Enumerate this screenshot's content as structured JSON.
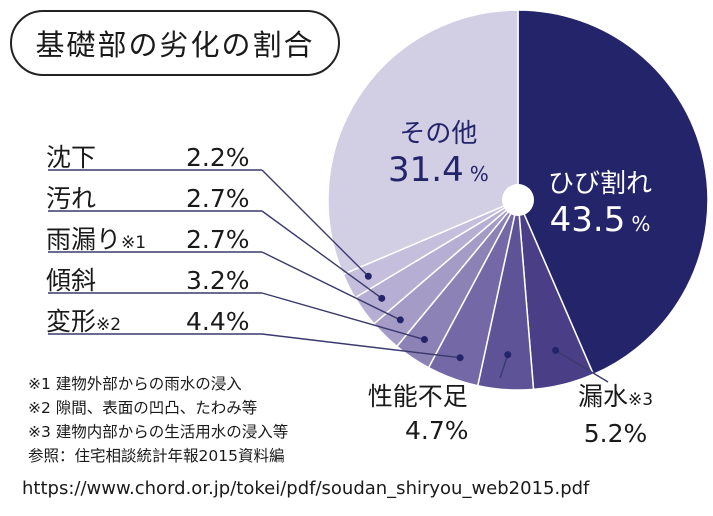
{
  "title": "基礎部の劣化の割合",
  "chart_data": {
    "type": "pie",
    "title": "基礎部の劣化の割合",
    "unit": "%",
    "slices": [
      {
        "label": "ひび割れ",
        "value": 43.5,
        "color": "#24246b"
      },
      {
        "label": "漏水",
        "note": "※3",
        "value": 5.2,
        "color": "#4a3f86"
      },
      {
        "label": "性能不足",
        "value": 4.7,
        "color": "#5d5396"
      },
      {
        "label": "変形",
        "note": "※2",
        "value": 4.4,
        "color": "#7568a6"
      },
      {
        "label": "傾斜",
        "value": 3.2,
        "color": "#8d82b6"
      },
      {
        "label": "雨漏り",
        "note": "※1",
        "value": 2.7,
        "color": "#a49bc6"
      },
      {
        "label": "汚れ",
        "value": 2.7,
        "color": "#b6aed3"
      },
      {
        "label": "沈下",
        "value": 2.2,
        "color": "#c5bedd"
      },
      {
        "label": "その他",
        "value": 31.4,
        "color": "#d2cee4"
      }
    ]
  },
  "labels": {
    "hibiware_name": "ひび割れ",
    "hibiware_value": "43.5",
    "hibiware_unit": "%",
    "sonota_name": "その他",
    "sonota_value": "31.4",
    "sonota_unit": "%",
    "rousui_name": "漏水",
    "rousui_note": "※3",
    "rousui_value": "5.2%",
    "seinou_name": "性能不足",
    "seinou_value": "4.7%"
  },
  "legend": [
    {
      "name": "沈下",
      "note": "",
      "value": "2.2%"
    },
    {
      "name": "汚れ",
      "note": "",
      "value": "2.7%"
    },
    {
      "name": "雨漏り",
      "note": "※1",
      "value": "2.7%"
    },
    {
      "name": "傾斜",
      "note": "",
      "value": "3.2%"
    },
    {
      "name": "変形",
      "note": "※2",
      "value": "4.4%"
    }
  ],
  "notes": [
    "※1 建物外部からの雨水の浸入",
    "※2 隙間、表面の凹凸、たわみ等",
    "※3 建物内部からの生活用水の浸入等"
  ],
  "source": "参照：住宅相談統計年報2015資料編",
  "url": "https://www.chord.or.jp/tokei/pdf/soudan_shiryou_web2015.pdf"
}
